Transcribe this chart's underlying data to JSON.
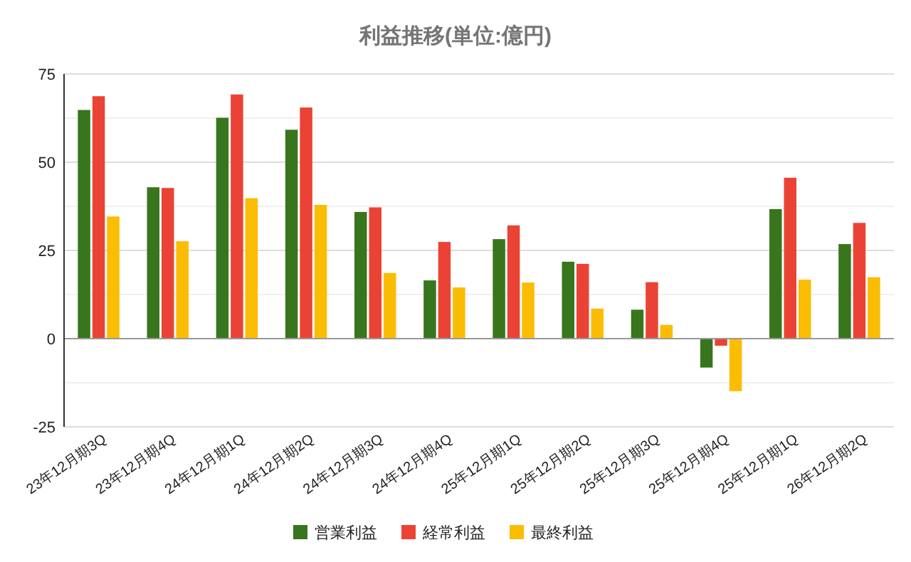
{
  "chart_data": {
    "type": "bar",
    "title": "利益推移(単位:億円)",
    "categories": [
      "23年12月期3Q",
      "23年12月期4Q",
      "24年12月期1Q",
      "24年12月期2Q",
      "24年12月期3Q",
      "24年12月期4Q",
      "25年12月期1Q",
      "25年12月期2Q",
      "25年12月期3Q",
      "25年12月期4Q",
      "25年12月期1Q",
      "26年12月期2Q"
    ],
    "series": [
      {
        "name": "営業利益",
        "color": "#38761d",
        "values": [
          64.8,
          42.9,
          62.6,
          59.2,
          35.9,
          16.5,
          28.2,
          21.8,
          8.2,
          -8.2,
          36.7,
          26.8
        ]
      },
      {
        "name": "経常利益",
        "color": "#ea4335",
        "values": [
          68.7,
          42.7,
          69.2,
          65.5,
          37.2,
          27.4,
          32.1,
          21.2,
          16.0,
          -2.0,
          45.6,
          32.8
        ]
      },
      {
        "name": "最終利益",
        "color": "#fbbc04",
        "values": [
          34.6,
          27.6,
          39.8,
          37.9,
          18.6,
          14.5,
          15.9,
          8.5,
          3.9,
          -14.9,
          16.7,
          17.4
        ]
      }
    ],
    "ylim": [
      -25,
      75
    ],
    "yticks": [
      -25,
      {
        "value": -12.5,
        "label": null
      },
      0,
      {
        "value": 12.5,
        "label": null
      },
      25,
      {
        "value": 37.5,
        "label": null
      },
      50,
      {
        "value": 62.5,
        "label": null
      },
      75
    ],
    "grid": "y",
    "legend": "bottom"
  }
}
